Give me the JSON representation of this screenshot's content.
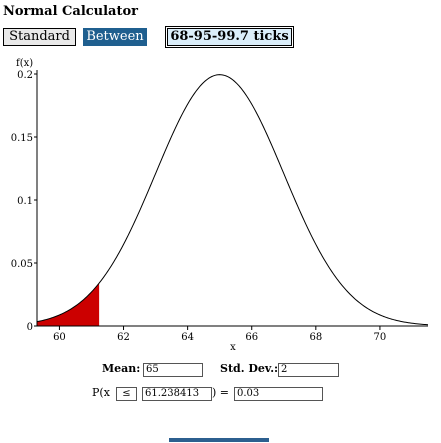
{
  "app": {
    "title": "Normal Calculator"
  },
  "toolbar": {
    "standard_label": "Standard",
    "between_label": "Between",
    "ticks_label": "68-95-99.7 ticks"
  },
  "chart_data": {
    "type": "area",
    "ylabel": "f(x)",
    "xlabel": "x",
    "x_ticks": [
      "60",
      "62",
      "64",
      "66",
      "68",
      "70"
    ],
    "y_ticks": [
      "0",
      "0.05",
      "0.1",
      "0.15",
      "0.2"
    ],
    "xlim": [
      59.3,
      71.5
    ],
    "ylim": [
      0,
      0.2
    ],
    "mean": 65,
    "sd": 2,
    "shaded_region": [
      59.3,
      61.238413
    ],
    "curve_color": "#000000",
    "shade_color": "#cc0000"
  },
  "form": {
    "mean_label": "Mean:",
    "mean_value": "65",
    "sd_label": "Std. Dev.:",
    "sd_value": "2",
    "prob_prefix": "P(x",
    "operator": "≤",
    "x_value": "61.238413",
    "equals": ") =",
    "result": "0.03"
  },
  "colors": {
    "accent": "#1f5f8f",
    "shade": "#cc0000"
  }
}
